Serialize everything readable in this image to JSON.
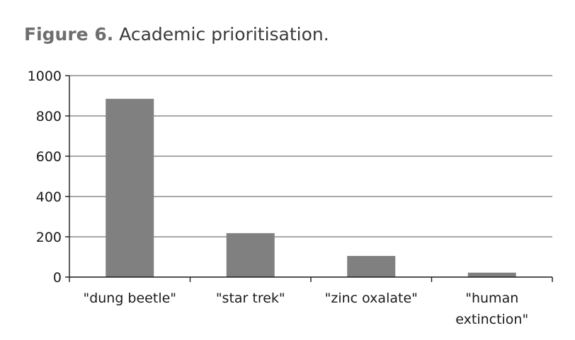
{
  "figure": {
    "label": "Figure 6.",
    "caption": "Academic prioritisation."
  },
  "colors": {
    "bar": "#808080",
    "gridline": "#8c8c8c",
    "axis": "#1a1a1a",
    "caption_label": "#6e6e6e"
  },
  "chart_data": {
    "type": "bar",
    "title": "Academic prioritisation.",
    "xlabel": "",
    "ylabel": "",
    "categories": [
      "\"dung beetle\"",
      "\"star trek\"",
      "\"zinc oxalate\"",
      "\"human extinction\""
    ],
    "category_lines": [
      [
        "\"dung beetle\""
      ],
      [
        "\"star trek\""
      ],
      [
        "\"zinc oxalate\""
      ],
      [
        "\"human",
        "extinction\""
      ]
    ],
    "values": [
      885,
      218,
      105,
      22
    ],
    "ylim": [
      0,
      1000
    ],
    "yticks": [
      0,
      200,
      400,
      600,
      800,
      1000
    ],
    "grid": true,
    "legend": "none"
  }
}
